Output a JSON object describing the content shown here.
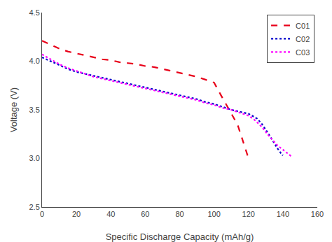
{
  "chart_data": {
    "type": "line",
    "xlabel": "Specific Discharge Capacity (mAh/g)",
    "ylabel": "Voltage (V)",
    "xlim": [
      0,
      160
    ],
    "ylim": [
      2.5,
      4.5
    ],
    "xticks": [
      0,
      20,
      40,
      60,
      80,
      100,
      120,
      140,
      160
    ],
    "yticks": [
      2.5,
      {
        "value": 3,
        "label": "3.0"
      },
      3.5,
      {
        "value": 4,
        "label": "4.0"
      },
      4.5
    ],
    "grid": false,
    "legend": "upper right",
    "series": [
      {
        "name": "C01",
        "color": "#e8001a",
        "line_style": "dashed",
        "x": [
          0,
          5,
          10,
          15,
          20,
          25,
          30,
          35,
          40,
          45,
          50,
          55,
          60,
          65,
          70,
          75,
          80,
          85,
          90,
          95,
          100,
          104,
          107,
          110,
          112,
          114,
          116,
          118,
          119.5
        ],
        "values": [
          4.21,
          4.17,
          4.13,
          4.1,
          4.08,
          4.06,
          4.04,
          4.02,
          4.01,
          3.99,
          3.98,
          3.97,
          3.95,
          3.94,
          3.92,
          3.9,
          3.88,
          3.86,
          3.84,
          3.81,
          3.78,
          3.65,
          3.56,
          3.47,
          3.4,
          3.33,
          3.22,
          3.1,
          3.03
        ]
      },
      {
        "name": "C02",
        "color": "#0000cc",
        "line_style": "dotted",
        "x": [
          0,
          5,
          10,
          15,
          20,
          25,
          30,
          35,
          40,
          45,
          50,
          55,
          60,
          65,
          70,
          75,
          80,
          85,
          90,
          95,
          100,
          105,
          110,
          115,
          120,
          125,
          128,
          131,
          133,
          135,
          137,
          139,
          140
        ],
        "values": [
          4.04,
          4.0,
          3.96,
          3.92,
          3.89,
          3.87,
          3.85,
          3.83,
          3.81,
          3.79,
          3.77,
          3.75,
          3.73,
          3.71,
          3.69,
          3.67,
          3.65,
          3.63,
          3.61,
          3.58,
          3.56,
          3.53,
          3.5,
          3.48,
          3.46,
          3.41,
          3.35,
          3.27,
          3.21,
          3.15,
          3.1,
          3.05,
          3.03
        ]
      },
      {
        "name": "C03",
        "color": "#ff00ff",
        "line_style": "dotted",
        "x": [
          0,
          5,
          10,
          15,
          20,
          25,
          30,
          35,
          40,
          45,
          50,
          55,
          60,
          65,
          70,
          75,
          80,
          85,
          90,
          95,
          100,
          105,
          110,
          115,
          120,
          124,
          128,
          131,
          134,
          137,
          140,
          143,
          145
        ],
        "values": [
          4.07,
          4.02,
          3.97,
          3.93,
          3.9,
          3.87,
          3.84,
          3.82,
          3.8,
          3.78,
          3.76,
          3.74,
          3.72,
          3.7,
          3.68,
          3.66,
          3.64,
          3.62,
          3.6,
          3.57,
          3.55,
          3.52,
          3.5,
          3.47,
          3.44,
          3.39,
          3.32,
          3.25,
          3.19,
          3.13,
          3.09,
          3.05,
          3.02
        ]
      }
    ]
  }
}
